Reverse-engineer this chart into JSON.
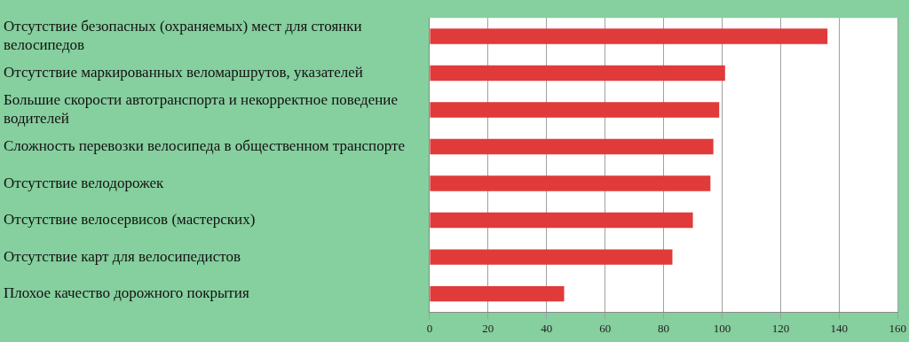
{
  "chart_data": {
    "type": "bar",
    "orientation": "horizontal",
    "categories": [
      "Отсутствие безопасных (охраняемых) мест для стоянки велосипедов",
      "Отсутствие маркированных веломаршрутов, указателей",
      "Большие скорости автотранспорта и некорректное поведение водителей",
      "Сложность перевозки велосипеда в общественном транспорте",
      "Отсутствие велодорожек",
      "Отсутствие велосервисов (мастерских)",
      "Отсутствие карт для велосипедистов",
      "Плохое качество дорожного покрытия"
    ],
    "values": [
      136,
      101,
      99,
      97,
      96,
      90,
      83,
      46
    ],
    "color": "#e03a3a",
    "xlim": [
      0,
      160
    ],
    "xticks": [
      0,
      20,
      40,
      60,
      80,
      100,
      120,
      140,
      160
    ],
    "grid": "x",
    "legend": false
  }
}
